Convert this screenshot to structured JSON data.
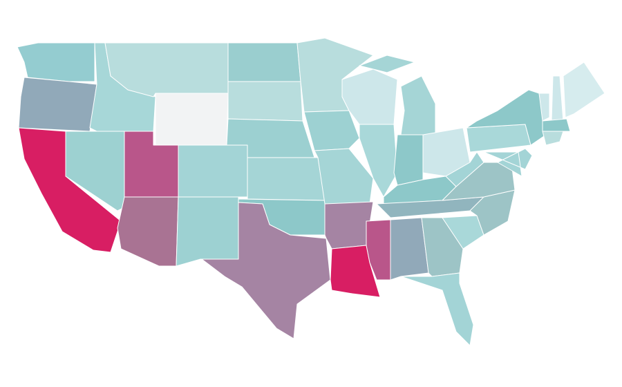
{
  "map": {
    "regions": [
      {
        "color": "#94ccd0"
      },
      {
        "color": "#91a9b9"
      },
      {
        "color": "#d81e63"
      },
      {
        "color": "#9dd1d1"
      },
      {
        "color": "#a7d7d8"
      },
      {
        "color": "#b8dddd"
      },
      {
        "color": "#f2f3f4"
      },
      {
        "color": "#b9568a"
      },
      {
        "color": "#a97393"
      },
      {
        "color": "#a3d4d6"
      },
      {
        "color": "#9dd1d2"
      },
      {
        "color": "#9acecf"
      },
      {
        "color": "#b8dddd"
      },
      {
        "color": "#9cd0d1"
      },
      {
        "color": "#a5d5d6"
      },
      {
        "color": "#8dc8c9"
      },
      {
        "color": "#a584a3"
      },
      {
        "color": "#b8dddd"
      },
      {
        "color": "#9dd1d2"
      },
      {
        "color": "#a5d5d6"
      },
      {
        "color": "#a584a3"
      },
      {
        "color": "#d81e63"
      },
      {
        "color": "#cde7ea"
      },
      {
        "color": "#a9d8d9"
      },
      {
        "color": "#a5d5d6"
      },
      {
        "color": "#8dc8c9"
      },
      {
        "color": "#cde7ea"
      },
      {
        "color": "#8dc8c9"
      },
      {
        "color": "#91b5be"
      },
      {
        "color": "#b9568a"
      },
      {
        "color": "#91a9b9"
      },
      {
        "color": "#9dc4c6"
      },
      {
        "color": "#a3d4d6"
      },
      {
        "color": "#a9d8d9"
      },
      {
        "color": "#9dc4c6"
      },
      {
        "color": "#9dc4c6"
      },
      {
        "color": "#a3d4d6"
      },
      {
        "color": "#a9d8d9"
      },
      {
        "color": "#8dc8c9"
      },
      {
        "color": "#a3d4d6"
      },
      {
        "color": "#cde7ea"
      },
      {
        "color": "#cde7ea"
      },
      {
        "color": "#d6ecee"
      },
      {
        "color": "#8dc8c9"
      },
      {
        "color": "#b8dddd"
      },
      {
        "color": "#a5d5d6"
      }
    ]
  }
}
